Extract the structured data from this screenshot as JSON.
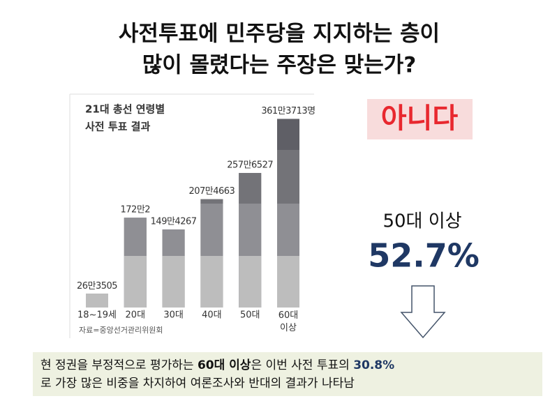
{
  "slide": {
    "title_lines": [
      "사전투표에 민주당을 지지하는 층이",
      "많이 몰렸다는 주장은 맞는가?"
    ],
    "answer": "아니다",
    "stat_label": "50대 이상",
    "stat_value": "52.7%",
    "note_line1": [
      {
        "text": "현 정권을 부정적으로 평가하는 ",
        "style": "normal"
      },
      {
        "text": "60대 이상",
        "style": "bold"
      },
      {
        "text": "은 이번 사전 투표의 ",
        "style": "normal"
      },
      {
        "text": "30.8%",
        "style": "bold-blue"
      }
    ],
    "note_line2": "로 가장 많은 비중을 차지하여 여론조사와 반대의 결과가 나타남"
  },
  "chart_data": {
    "type": "bar",
    "title_lines": [
      "21대 총선 연령별",
      "사전 투표 결과"
    ],
    "categories": [
      "18~19세",
      "20대",
      "30대",
      "40대",
      "50대",
      "60대 이상"
    ],
    "values": [
      263505,
      1720002,
      1494267,
      2074663,
      2576527,
      3613713
    ],
    "value_labels": [
      "26만3505",
      "172만2",
      "149만4267",
      "207만4663",
      "257만6527",
      "361만3713명"
    ],
    "source": "자료=중앙선거관리위원회",
    "ylim": [
      0,
      3700000
    ],
    "color": "#5f5f66"
  }
}
